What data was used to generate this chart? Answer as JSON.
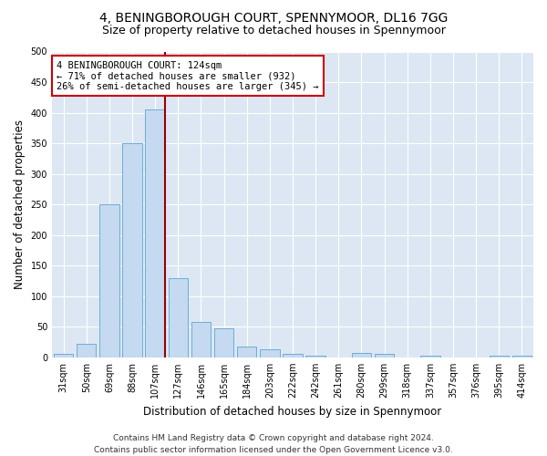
{
  "title_line1": "4, BENINGBOROUGH COURT, SPENNYMOOR, DL16 7GG",
  "title_line2": "Size of property relative to detached houses in Spennymoor",
  "xlabel": "Distribution of detached houses by size in Spennymoor",
  "ylabel": "Number of detached properties",
  "categories": [
    "31sqm",
    "50sqm",
    "69sqm",
    "88sqm",
    "107sqm",
    "127sqm",
    "146sqm",
    "165sqm",
    "184sqm",
    "203sqm",
    "222sqm",
    "242sqm",
    "261sqm",
    "280sqm",
    "299sqm",
    "318sqm",
    "337sqm",
    "357sqm",
    "376sqm",
    "395sqm",
    "414sqm"
  ],
  "values": [
    5,
    22,
    250,
    350,
    405,
    130,
    58,
    47,
    17,
    13,
    5,
    2,
    0,
    7,
    6,
    0,
    2,
    0,
    0,
    2,
    3
  ],
  "bar_color": "#c5d9f0",
  "bar_edge_color": "#6baed6",
  "highlight_line_color": "#990000",
  "annotation_text": "4 BENINGBOROUGH COURT: 124sqm\n← 71% of detached houses are smaller (932)\n26% of semi-detached houses are larger (345) →",
  "annotation_box_color": "#ffffff",
  "annotation_box_edge": "#cc0000",
  "ylim": [
    0,
    500
  ],
  "yticks": [
    0,
    50,
    100,
    150,
    200,
    250,
    300,
    350,
    400,
    450,
    500
  ],
  "plot_background": "#dce7f3",
  "footer_line1": "Contains HM Land Registry data © Crown copyright and database right 2024.",
  "footer_line2": "Contains public sector information licensed under the Open Government Licence v3.0.",
  "title_fontsize": 10,
  "subtitle_fontsize": 9,
  "axis_label_fontsize": 8.5,
  "tick_fontsize": 7,
  "annotation_fontsize": 7.5,
  "footer_fontsize": 6.5
}
